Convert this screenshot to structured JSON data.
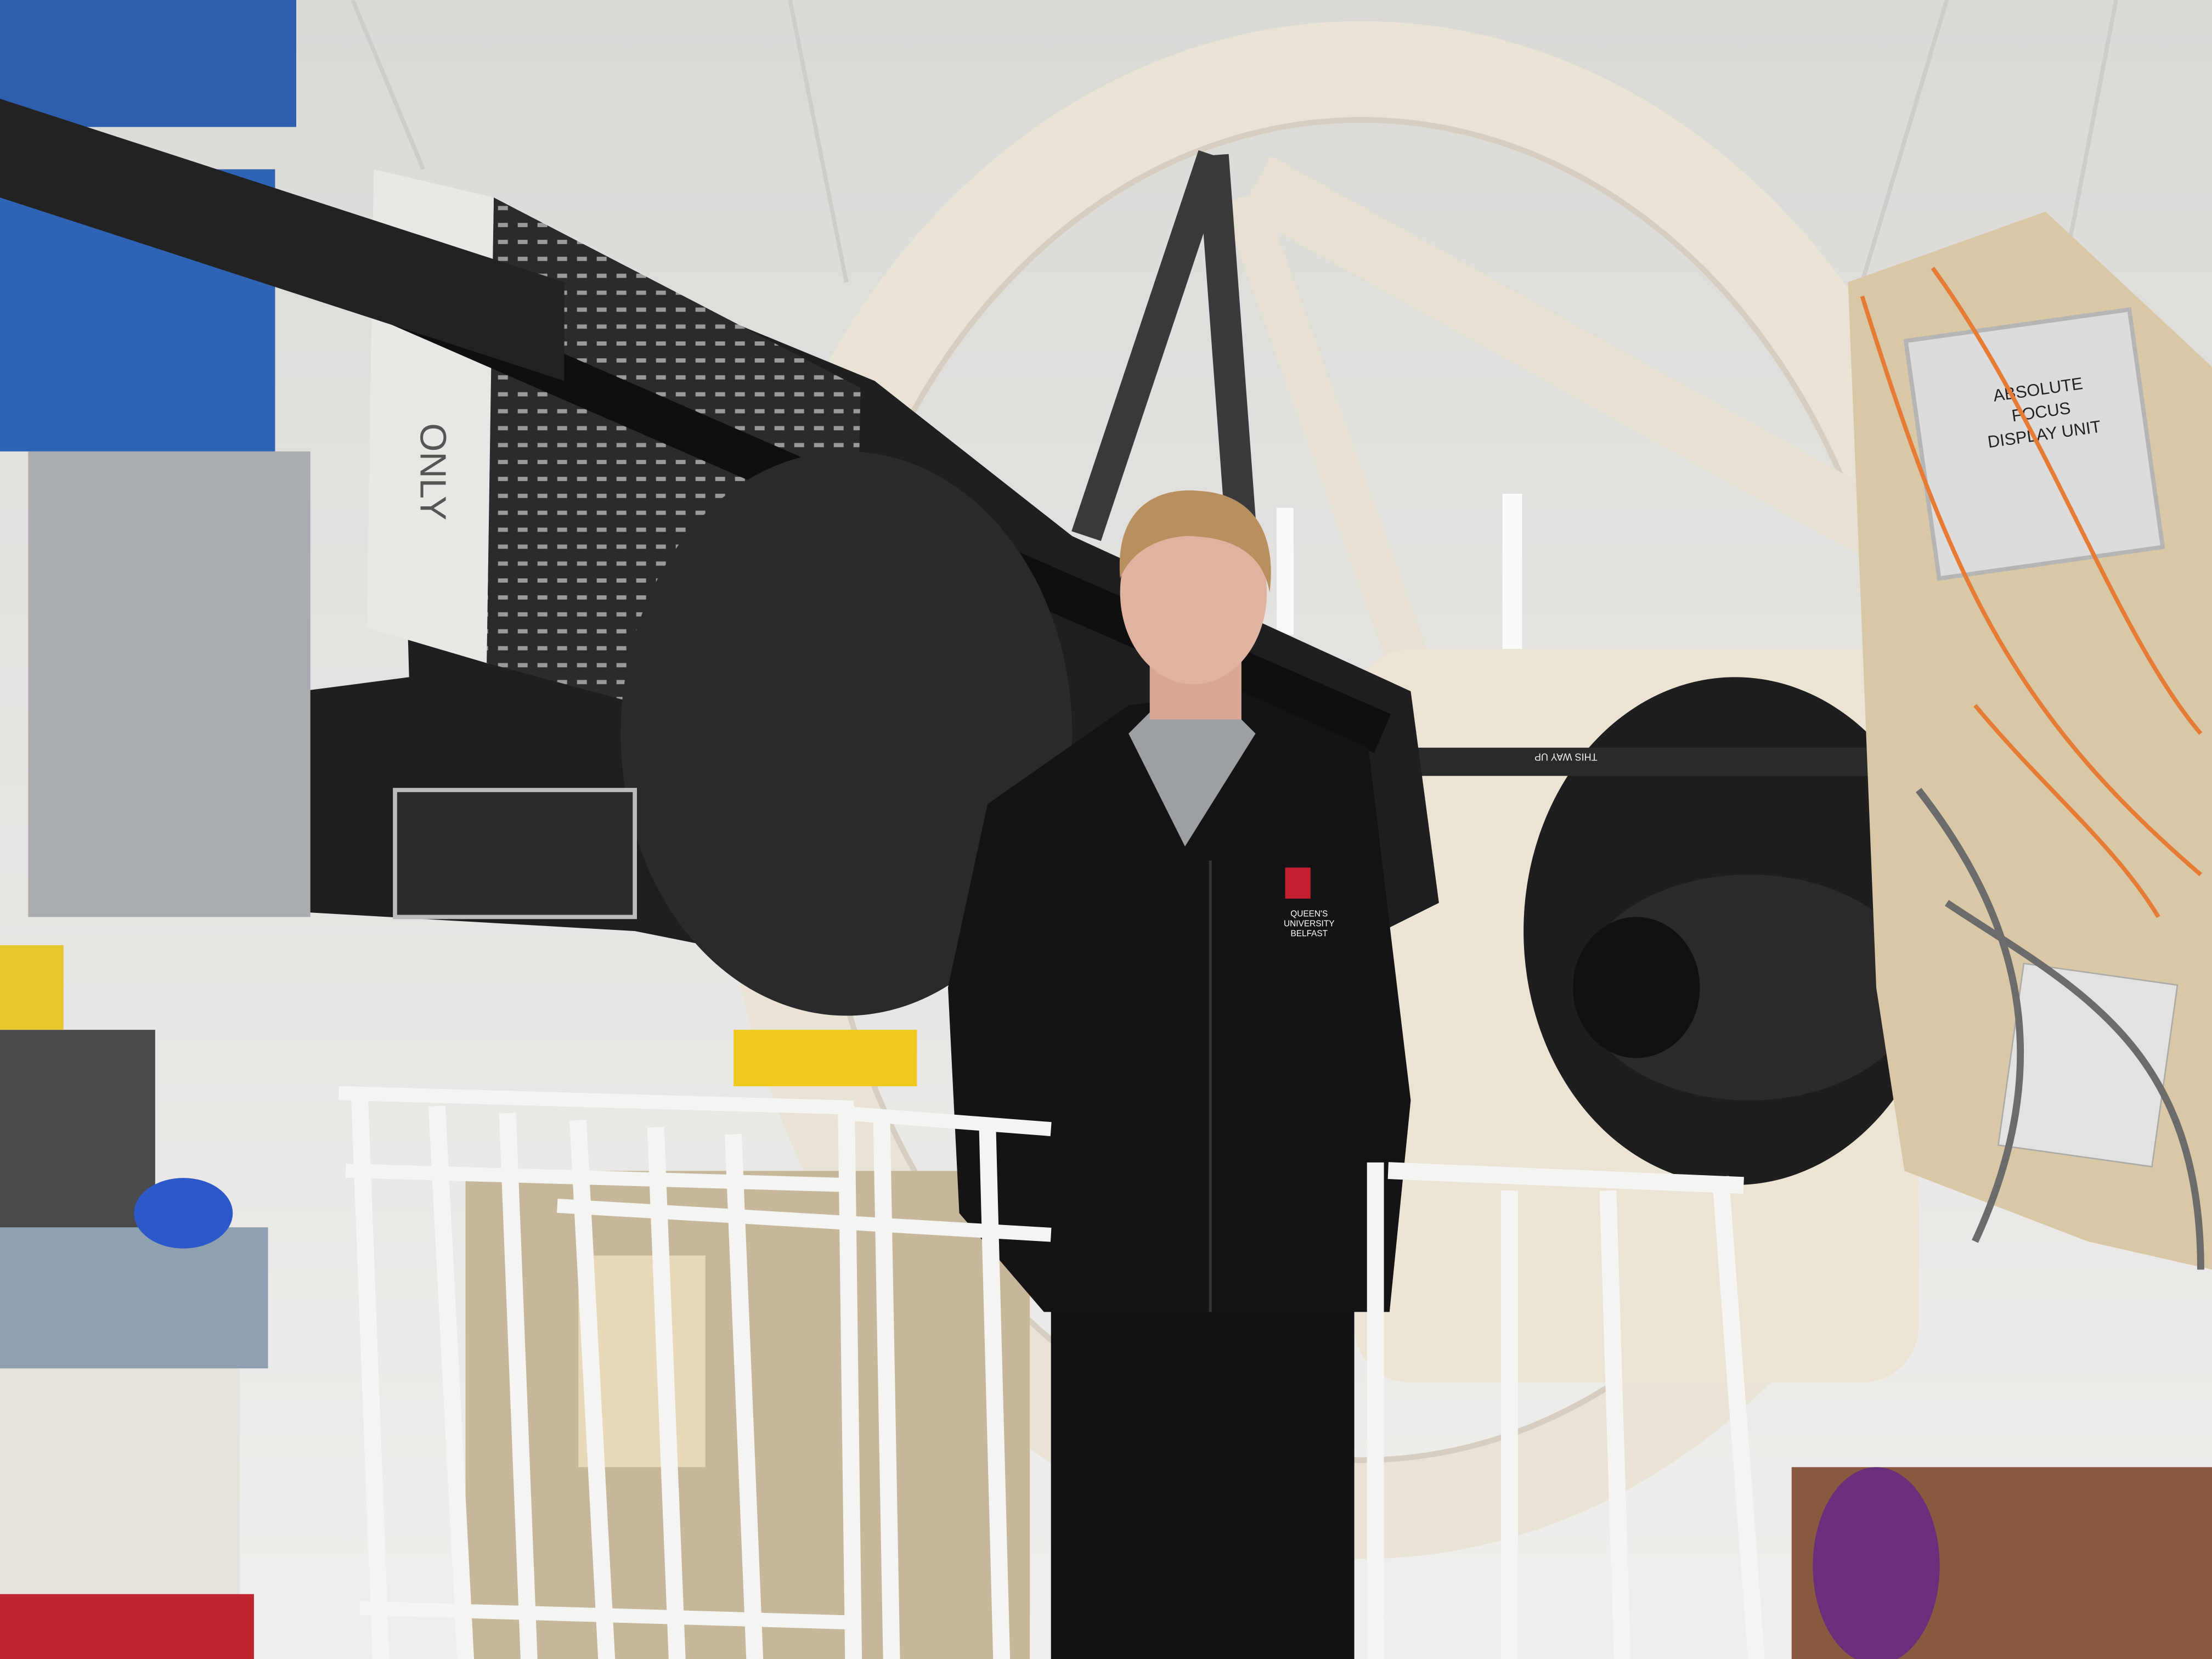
{
  "photo": {
    "labels": {
      "focus_unit": [
        "ABSOLUTE",
        "FOCUS",
        "DISPLAY UNIT"
      ],
      "sweater_logo": [
        "QUEEN'S",
        "UNIVERSITY",
        "BELFAST"
      ],
      "platform_sign": "THIS WAY UP",
      "instrument_panel": "ONLY"
    }
  }
}
